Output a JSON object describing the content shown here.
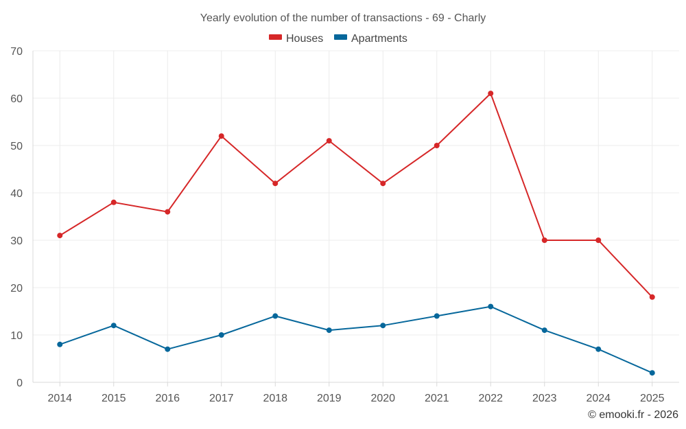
{
  "chart_data": {
    "type": "line",
    "title": "Yearly evolution of the number of transactions - 69 - Charly",
    "categories": [
      "2014",
      "2015",
      "2016",
      "2017",
      "2018",
      "2019",
      "2020",
      "2021",
      "2022",
      "2023",
      "2024",
      "2025"
    ],
    "series": [
      {
        "name": "Houses",
        "color": "#d62728",
        "values": [
          31,
          38,
          36,
          52,
          42,
          51,
          42,
          50,
          61,
          30,
          30,
          18
        ]
      },
      {
        "name": "Apartments",
        "color": "#06679b",
        "values": [
          8,
          12,
          7,
          10,
          14,
          11,
          12,
          14,
          16,
          11,
          7,
          2
        ]
      }
    ],
    "ylim": [
      0,
      70
    ],
    "yticks": [
      0,
      10,
      20,
      30,
      40,
      50,
      60,
      70
    ],
    "grid": true,
    "legend_position": "top-center",
    "xlabel": "",
    "ylabel": ""
  },
  "credit": "© emooki.fr - 2026"
}
